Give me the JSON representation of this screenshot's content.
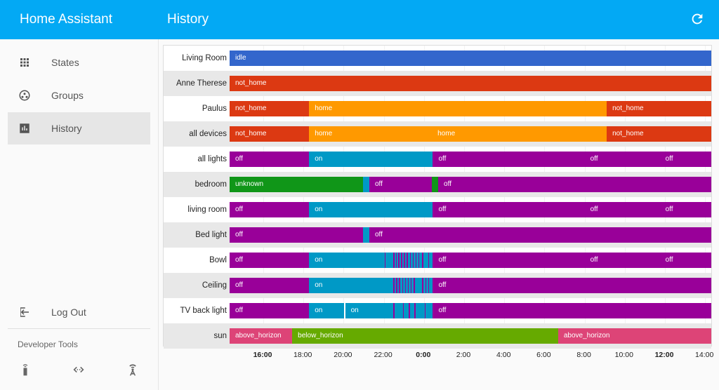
{
  "app": {
    "title": "Home Assistant"
  },
  "page": {
    "title": "History"
  },
  "nav": [
    {
      "label": "States",
      "icon": "grid-icon"
    },
    {
      "label": "Groups",
      "icon": "groups-icon"
    },
    {
      "label": "History",
      "icon": "chart-icon",
      "active": true
    },
    {
      "label": "Log Out",
      "icon": "logout-icon"
    }
  ],
  "developer_tools": {
    "title": "Developer Tools",
    "icons": [
      "remote-icon",
      "code-icon",
      "antenna-icon"
    ]
  },
  "colors": {
    "blue": "#3366cc",
    "red": "#dc3912",
    "orange": "#ff9900",
    "purple": "#990099",
    "teal": "#0099c6",
    "green": "#109618",
    "lightgreen": "#66aa00",
    "pink": "#dd4477",
    "header": "#03a9f4"
  },
  "chart_data": {
    "type": "timeline",
    "time_range": [
      "14:00",
      "15:00"
    ],
    "axis_ticks": [
      {
        "label": "16:00",
        "bold": true
      },
      {
        "label": "18:00"
      },
      {
        "label": "20:00"
      },
      {
        "label": "22:00"
      },
      {
        "label": "0:00",
        "bold": true
      },
      {
        "label": "2:00"
      },
      {
        "label": "4:00"
      },
      {
        "label": "6:00"
      },
      {
        "label": "8:00"
      },
      {
        "label": "10:00"
      },
      {
        "label": "12:00",
        "bold": true
      },
      {
        "label": "14:00"
      }
    ],
    "rows": [
      {
        "entity": "Living Room",
        "segments": [
          {
            "state": "idle",
            "from": 0,
            "to": 1,
            "color": "blue"
          }
        ]
      },
      {
        "entity": "Anne Therese",
        "segments": [
          {
            "state": "not_home",
            "from": 0,
            "to": 1,
            "color": "red"
          }
        ]
      },
      {
        "entity": "Paulus",
        "segments": [
          {
            "state": "not_home",
            "from": 0,
            "to": 0.165,
            "color": "red"
          },
          {
            "state": "home",
            "from": 0.165,
            "to": 0.783,
            "color": "orange"
          },
          {
            "state": "not_home",
            "from": 0.783,
            "to": 1,
            "color": "red"
          }
        ]
      },
      {
        "entity": "all devices",
        "segments": [
          {
            "state": "not_home",
            "from": 0,
            "to": 0.165,
            "color": "red"
          },
          {
            "state": "home",
            "from": 0.165,
            "to": 0.42,
            "color": "orange"
          },
          {
            "state": "home",
            "from": 0.42,
            "to": 0.783,
            "color": "orange"
          },
          {
            "state": "not_home",
            "from": 0.783,
            "to": 1,
            "color": "red"
          }
        ]
      },
      {
        "entity": "all lights",
        "segments": [
          {
            "state": "off",
            "from": 0,
            "to": 0.165,
            "color": "purple"
          },
          {
            "state": "on",
            "from": 0.165,
            "to": 0.422,
            "color": "teal"
          },
          {
            "state": "off",
            "from": 0.422,
            "to": 0.737,
            "color": "purple"
          },
          {
            "state": "off",
            "from": 0.737,
            "to": 0.893,
            "color": "purple"
          },
          {
            "state": "off",
            "from": 0.893,
            "to": 1,
            "color": "purple"
          }
        ]
      },
      {
        "entity": "bedroom",
        "segments": [
          {
            "state": "unknown",
            "from": 0,
            "to": 0.277,
            "color": "green"
          },
          {
            "state": "",
            "from": 0.277,
            "to": 0.29,
            "color": "teal"
          },
          {
            "state": "off",
            "from": 0.29,
            "to": 0.42,
            "color": "purple"
          },
          {
            "state": "",
            "from": 0.42,
            "to": 0.433,
            "color": "green"
          },
          {
            "state": "off",
            "from": 0.433,
            "to": 1,
            "color": "purple"
          }
        ]
      },
      {
        "entity": "living room",
        "segments": [
          {
            "state": "off",
            "from": 0,
            "to": 0.165,
            "color": "purple"
          },
          {
            "state": "on",
            "from": 0.165,
            "to": 0.422,
            "color": "teal"
          },
          {
            "state": "off",
            "from": 0.422,
            "to": 0.737,
            "color": "purple"
          },
          {
            "state": "off",
            "from": 0.737,
            "to": 0.893,
            "color": "purple"
          },
          {
            "state": "off",
            "from": 0.893,
            "to": 1,
            "color": "purple"
          }
        ]
      },
      {
        "entity": "Bed light",
        "segments": [
          {
            "state": "off",
            "from": 0,
            "to": 0.277,
            "color": "purple"
          },
          {
            "state": "",
            "from": 0.277,
            "to": 0.29,
            "color": "teal"
          },
          {
            "state": "off",
            "from": 0.29,
            "to": 1,
            "color": "purple"
          }
        ]
      },
      {
        "entity": "Bowl",
        "segments": [
          {
            "state": "off",
            "from": 0,
            "to": 0.165,
            "color": "purple"
          },
          {
            "state": "on",
            "from": 0.165,
            "to": 0.422,
            "color": "teal"
          },
          {
            "state": "off",
            "from": 0.422,
            "to": 0.737,
            "color": "purple"
          },
          {
            "state": "off",
            "from": 0.737,
            "to": 0.893,
            "color": "purple"
          },
          {
            "state": "off",
            "from": 0.893,
            "to": 1,
            "color": "purple"
          }
        ],
        "ticks": [
          0.322,
          0.34,
          0.345,
          0.35,
          0.356,
          0.362,
          0.368,
          0.374,
          0.38,
          0.386,
          0.392,
          0.4,
          0.412
        ]
      },
      {
        "entity": "Ceiling",
        "segments": [
          {
            "state": "off",
            "from": 0,
            "to": 0.165,
            "color": "purple"
          },
          {
            "state": "on",
            "from": 0.165,
            "to": 0.422,
            "color": "teal"
          },
          {
            "state": "off",
            "from": 0.422,
            "to": 1,
            "color": "purple"
          }
        ],
        "ticks": [
          0.34,
          0.346,
          0.352,
          0.358,
          0.364,
          0.37,
          0.376,
          0.382,
          0.4,
          0.406,
          0.412
        ]
      },
      {
        "entity": "TV back light",
        "segments": [
          {
            "state": "off",
            "from": 0,
            "to": 0.165,
            "color": "purple"
          },
          {
            "state": "on",
            "from": 0.165,
            "to": 0.238,
            "color": "teal"
          },
          {
            "state": "on",
            "from": 0.24,
            "to": 0.422,
            "color": "teal"
          },
          {
            "state": "off",
            "from": 0.422,
            "to": 1,
            "color": "purple"
          }
        ],
        "ticks": [
          0.34,
          0.36,
          0.372,
          0.384,
          0.405
        ]
      },
      {
        "entity": "sun",
        "segments": [
          {
            "state": "above_horizon",
            "from": 0,
            "to": 0.13,
            "color": "pink"
          },
          {
            "state": "below_horizon",
            "from": 0.13,
            "to": 0.682,
            "color": "lightgreen"
          },
          {
            "state": "above_horizon",
            "from": 0.682,
            "to": 1,
            "color": "pink"
          }
        ]
      }
    ]
  }
}
